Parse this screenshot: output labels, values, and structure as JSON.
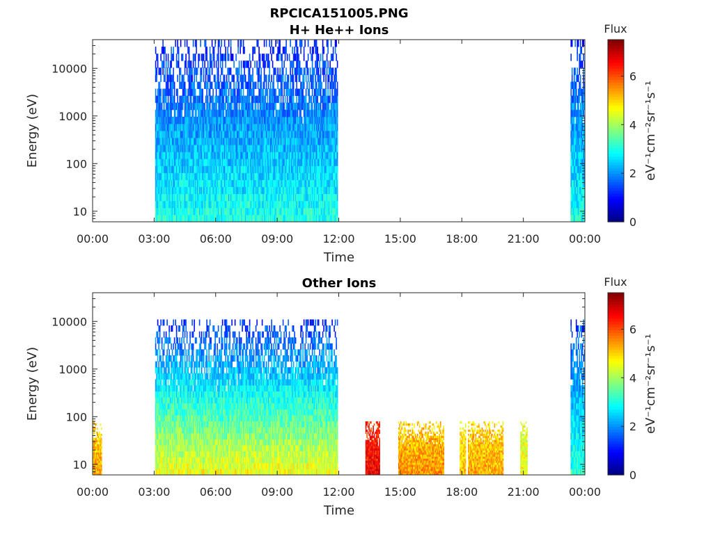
{
  "figure_title": "RPCICA151005.PNG",
  "colorbar_title": "Flux",
  "colorbar_unit": "eV⁻¹cm⁻²sr⁻¹s⁻¹",
  "colormap": "jet",
  "chart_data": [
    {
      "type": "heatmap",
      "title": "H+ He++ Ions",
      "xlabel": "Time",
      "ylabel": "Energy (eV)",
      "x_ticks": [
        "00:00",
        "03:00",
        "06:00",
        "09:00",
        "12:00",
        "15:00",
        "18:00",
        "21:00",
        "00:00"
      ],
      "xlim_hours": [
        0,
        24
      ],
      "y_scale": "log",
      "y_ticks": [
        "10",
        "100",
        "1000",
        "10000"
      ],
      "ylim": [
        6,
        40000
      ],
      "colorbar": {
        "min": 0,
        "max": 7.5,
        "ticks": [
          "0",
          "2",
          "4",
          "6"
        ]
      },
      "data_intervals": [
        {
          "start_hour": 3.05,
          "end_hour": 11.95,
          "max_energy": 40000,
          "flux_low_energy": 3.0,
          "flux_high_energy": 1.2
        },
        {
          "start_hour": 23.3,
          "end_hour": 24.0,
          "max_energy": 40000,
          "flux_low_energy": 3.0,
          "flux_high_energy": 1.3
        }
      ]
    },
    {
      "type": "heatmap",
      "title": "Other Ions",
      "xlabel": "Time",
      "ylabel": "Energy (eV)",
      "x_ticks": [
        "00:00",
        "03:00",
        "06:00",
        "09:00",
        "12:00",
        "15:00",
        "18:00",
        "21:00",
        "00:00"
      ],
      "xlim_hours": [
        0,
        24
      ],
      "y_scale": "log",
      "y_ticks": [
        "10",
        "100",
        "1000",
        "10000"
      ],
      "ylim": [
        6,
        40000
      ],
      "colorbar": {
        "min": 0,
        "max": 7.5,
        "ticks": [
          "0",
          "2",
          "4",
          "6"
        ]
      },
      "data_intervals": [
        {
          "start_hour": 0.0,
          "end_hour": 0.45,
          "max_energy": 80,
          "flux_low_energy": 5.3,
          "flux_high_energy": 5.0
        },
        {
          "start_hour": 3.05,
          "end_hour": 11.95,
          "max_energy": 11000,
          "flux_low_energy": 4.6,
          "flux_high_energy": 1.3
        },
        {
          "start_hour": 13.3,
          "end_hour": 14.0,
          "max_energy": 80,
          "flux_low_energy": 6.7,
          "flux_high_energy": 6.3
        },
        {
          "start_hour": 14.9,
          "end_hour": 17.1,
          "max_energy": 80,
          "flux_low_energy": 5.5,
          "flux_high_energy": 5.0
        },
        {
          "start_hour": 17.9,
          "end_hour": 18.2,
          "max_energy": 80,
          "flux_low_energy": 5.1,
          "flux_high_energy": 4.8
        },
        {
          "start_hour": 18.3,
          "end_hour": 20.0,
          "max_energy": 80,
          "flux_low_energy": 5.3,
          "flux_high_energy": 5.0
        },
        {
          "start_hour": 20.85,
          "end_hour": 21.2,
          "max_energy": 80,
          "flux_low_energy": 4.6,
          "flux_high_energy": 4.4
        },
        {
          "start_hour": 23.3,
          "end_hour": 24.0,
          "max_energy": 11000,
          "flux_low_energy": 3.2,
          "flux_high_energy": 1.4
        }
      ]
    }
  ]
}
